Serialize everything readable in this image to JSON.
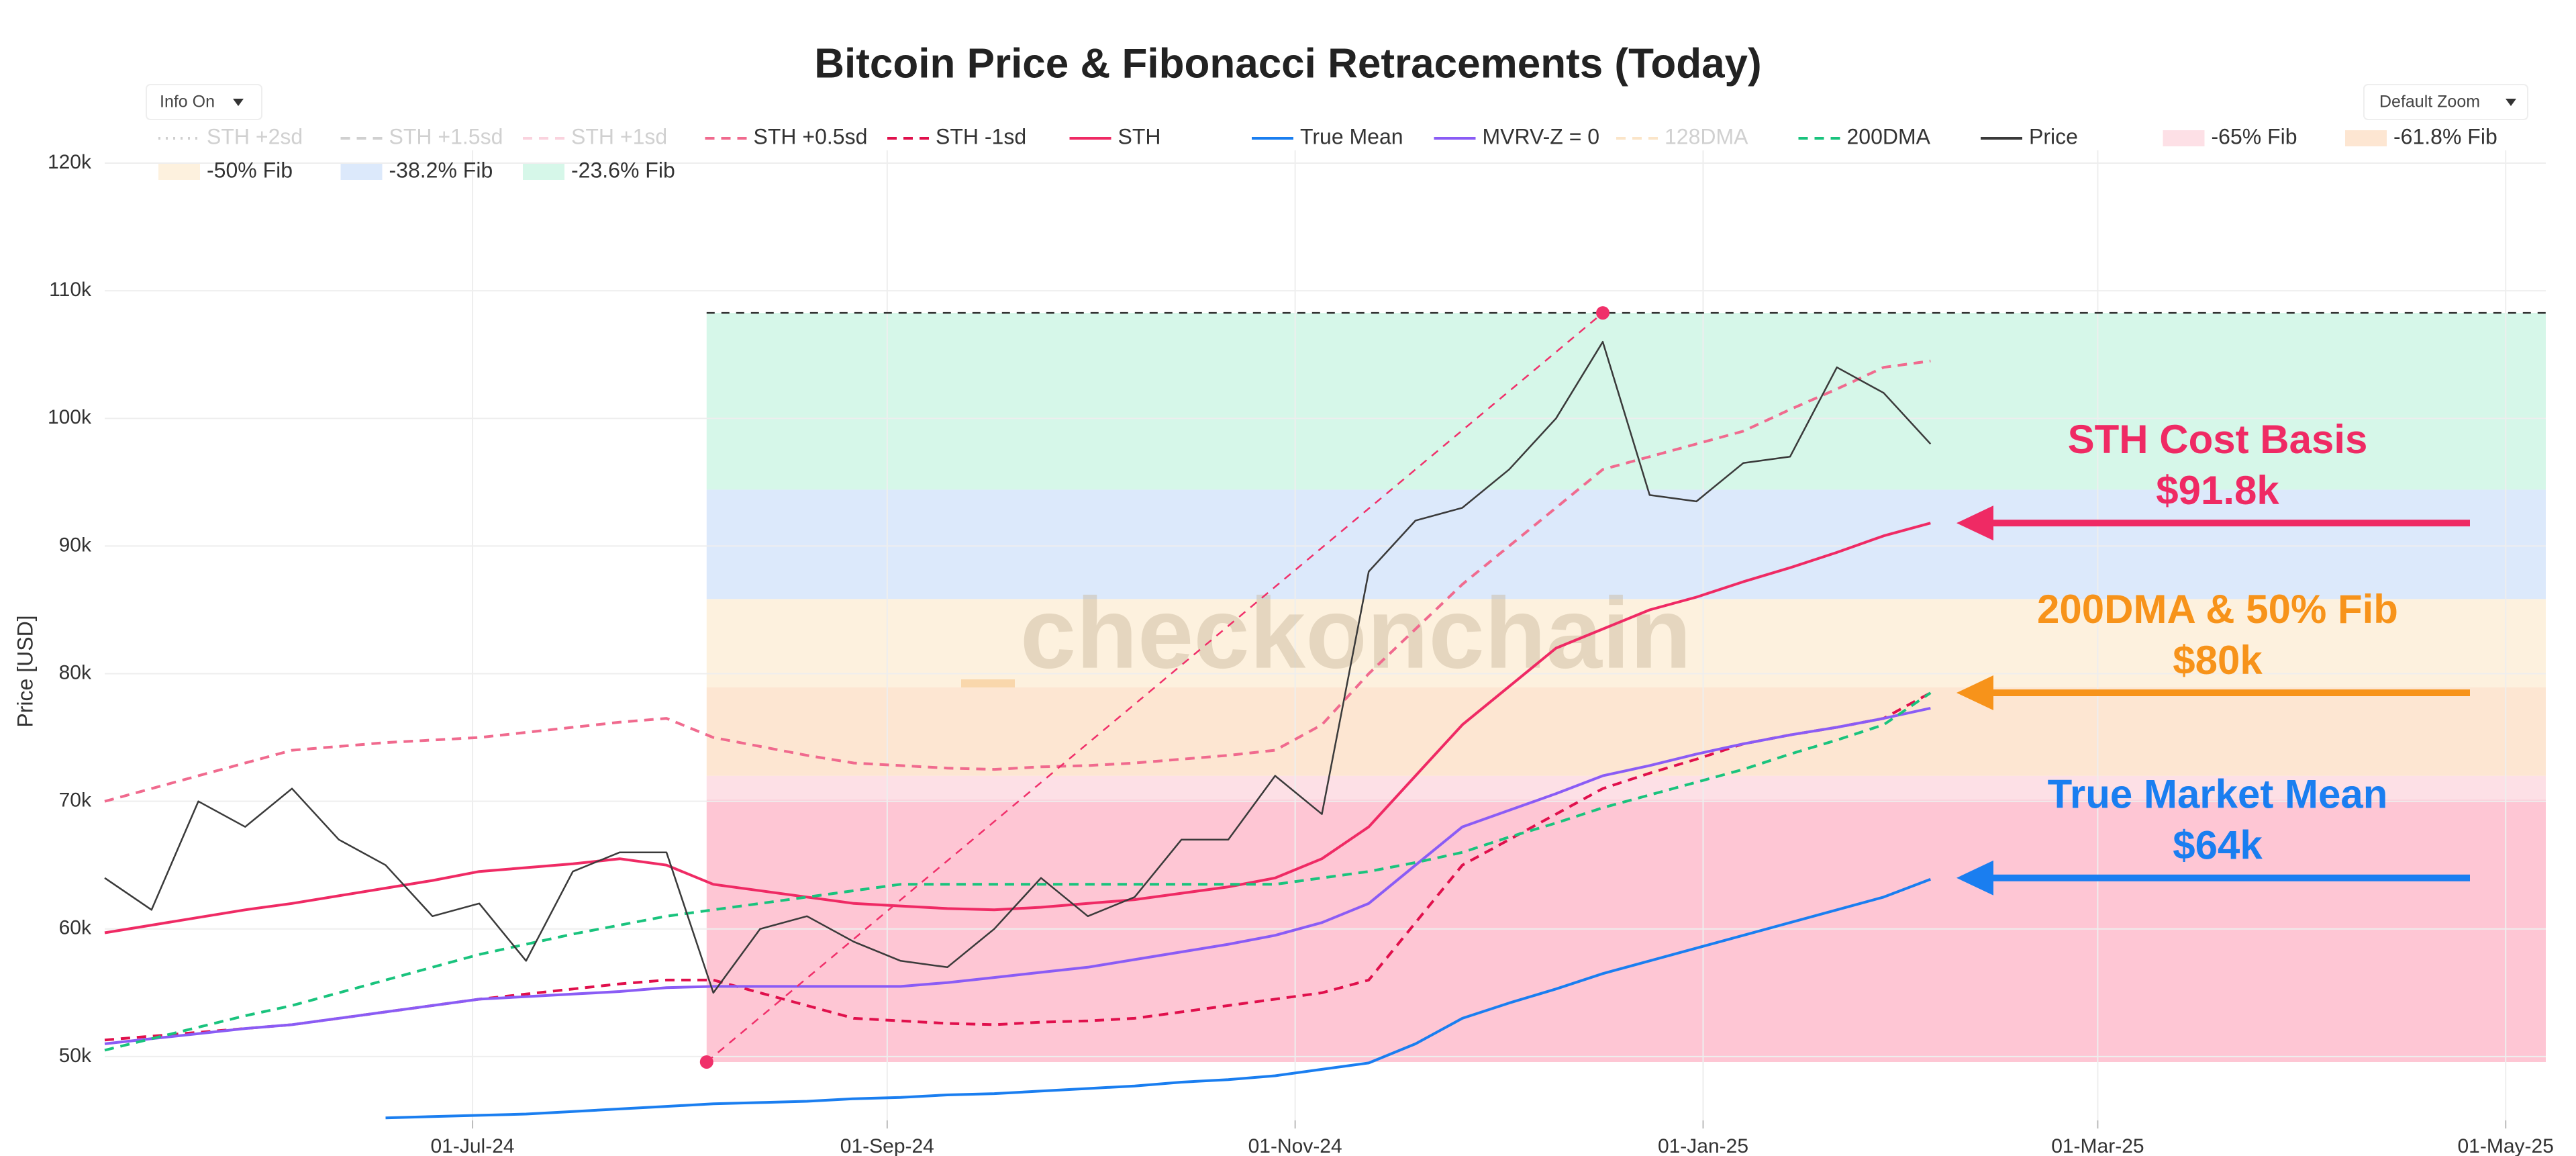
{
  "chart_data": {
    "type": "line",
    "title": "Bitcoin Price & Fibonacci Retracements (Today)",
    "y_label": "Price [USD]",
    "watermark": "checkonchain",
    "controls": {
      "info": "Info On",
      "zoom": "Default Zoom"
    },
    "grid": true,
    "xlim": [
      "2024-05-07",
      "2025-05-07"
    ],
    "xticks": [
      {
        "value": "2024-07-01",
        "label": "01-Jul-24"
      },
      {
        "value": "2024-09-01",
        "label": "01-Sep-24"
      },
      {
        "value": "2024-11-01",
        "label": "01-Nov-24"
      },
      {
        "value": "2025-01-01",
        "label": "01-Jan-25"
      },
      {
        "value": "2025-03-01",
        "label": "01-Mar-25"
      },
      {
        "value": "2025-05-01",
        "label": "01-May-25"
      }
    ],
    "ylim": [
      45000,
      121000
    ],
    "yticks": [
      {
        "value": 50000,
        "label": "50k"
      },
      {
        "value": 60000,
        "label": "60k"
      },
      {
        "value": 70000,
        "label": "70k"
      },
      {
        "value": 80000,
        "label": "80k"
      },
      {
        "value": 90000,
        "label": "90k"
      },
      {
        "value": 100000,
        "label": "100k"
      },
      {
        "value": 110000,
        "label": "110k"
      },
      {
        "value": 120000,
        "label": "120k"
      }
    ],
    "x": [
      "2024-05-07",
      "2024-05-14",
      "2024-05-21",
      "2024-05-28",
      "2024-06-04",
      "2024-06-11",
      "2024-06-18",
      "2024-06-25",
      "2024-07-02",
      "2024-07-09",
      "2024-07-16",
      "2024-07-23",
      "2024-07-30",
      "2024-08-06",
      "2024-08-13",
      "2024-08-20",
      "2024-08-27",
      "2024-09-03",
      "2024-09-10",
      "2024-09-17",
      "2024-09-24",
      "2024-10-01",
      "2024-10-08",
      "2024-10-15",
      "2024-10-22",
      "2024-10-29",
      "2024-11-05",
      "2024-11-12",
      "2024-11-19",
      "2024-11-26",
      "2024-12-03",
      "2024-12-10",
      "2024-12-17",
      "2024-12-24",
      "2024-12-31",
      "2025-01-07",
      "2025-01-14",
      "2025-01-21",
      "2025-01-28",
      "2025-02-04"
    ],
    "series": [
      {
        "name": "STH +2sd",
        "color": "#999999",
        "style": "dotted",
        "visible": false
      },
      {
        "name": "STH +1.5sd",
        "color": "#999999",
        "style": "dashed",
        "visible": false
      },
      {
        "name": "STH +1sd",
        "color": "#f6a0b8",
        "style": "dashed",
        "visible": false
      },
      {
        "name": "STH +0.5sd",
        "color": "#f06a8e",
        "style": "dashed",
        "visible": true,
        "values": [
          70000,
          71000,
          72000,
          73000,
          74000,
          74300,
          74600,
          74800,
          75000,
          75400,
          75800,
          76200,
          76500,
          75000,
          74300,
          73600,
          73000,
          72800,
          72600,
          72500,
          72700,
          72800,
          73000,
          73300,
          73600,
          74000,
          76000,
          80000,
          83500,
          87000,
          90000,
          93000,
          96000,
          97000,
          98000,
          99000,
          100700,
          102300,
          104000,
          104500
        ]
      },
      {
        "name": "STH -1sd",
        "color": "#e0104c",
        "style": "dashed",
        "visible": true,
        "values": [
          51300,
          51600,
          51900,
          52200,
          52500,
          53000,
          53500,
          54000,
          54500,
          54900,
          55300,
          55700,
          56000,
          56000,
          55000,
          54000,
          53000,
          52800,
          52600,
          52500,
          52700,
          52800,
          53000,
          53500,
          54000,
          54500,
          55000,
          56000,
          60500,
          65000,
          67000,
          69000,
          71000,
          72200,
          73300,
          74500,
          75200,
          75800,
          76500,
          78500
        ]
      },
      {
        "name": "STH",
        "color": "#ef2a64",
        "style": "solid",
        "visible": true,
        "values": [
          59700,
          60300,
          60900,
          61500,
          62000,
          62600,
          63200,
          63800,
          64500,
          64800,
          65100,
          65500,
          65000,
          63500,
          63000,
          62500,
          62000,
          61800,
          61600,
          61500,
          61700,
          62000,
          62300,
          62800,
          63300,
          64000,
          65500,
          68000,
          72000,
          76000,
          79000,
          82000,
          83500,
          85000,
          86000,
          87200,
          88300,
          89500,
          90800,
          91800
        ]
      },
      {
        "name": "True Mean",
        "color": "#1a7ef0",
        "style": "solid",
        "visible": true,
        "values": [
          null,
          null,
          null,
          null,
          null,
          null,
          45200,
          45300,
          45400,
          45500,
          45700,
          45900,
          46100,
          46300,
          46400,
          46500,
          46700,
          46800,
          47000,
          47100,
          47300,
          47500,
          47700,
          48000,
          48200,
          48500,
          49000,
          49500,
          51000,
          53000,
          54200,
          55300,
          56500,
          57500,
          58500,
          59500,
          60500,
          61500,
          62500,
          63900
        ]
      },
      {
        "name": "MVRV-Z = 0",
        "color": "#8a5cf5",
        "style": "solid",
        "visible": true,
        "values": [
          51000,
          51400,
          51800,
          52200,
          52500,
          53000,
          53500,
          54000,
          54500,
          54700,
          54900,
          55100,
          55400,
          55500,
          55500,
          55500,
          55500,
          55500,
          55800,
          56200,
          56600,
          57000,
          57600,
          58200,
          58800,
          59500,
          60500,
          62000,
          65000,
          68000,
          69300,
          70600,
          72000,
          72800,
          73700,
          74500,
          75200,
          75800,
          76500,
          77300
        ]
      },
      {
        "name": "128DMA",
        "color": "#f7c68a",
        "style": "dashed",
        "visible": false
      },
      {
        "name": "200DMA",
        "color": "#19c37d",
        "style": "dashed",
        "visible": true,
        "values": [
          50500,
          51400,
          52300,
          53200,
          54000,
          55000,
          56000,
          57000,
          58000,
          58800,
          59600,
          60300,
          61000,
          61500,
          62000,
          62500,
          63000,
          63500,
          63500,
          63500,
          63500,
          63500,
          63500,
          63500,
          63500,
          63500,
          64000,
          64500,
          65200,
          66000,
          67200,
          68300,
          69500,
          70500,
          71500,
          72500,
          73700,
          74800,
          76000,
          78500
        ]
      },
      {
        "name": "Price",
        "color": "#3a3a3a",
        "style": "solid",
        "visible": true,
        "values": [
          64000,
          61500,
          70000,
          68000,
          71000,
          67000,
          65000,
          61000,
          62000,
          57500,
          64500,
          66000,
          66000,
          55000,
          60000,
          61000,
          59000,
          57500,
          57000,
          60000,
          64000,
          61000,
          62500,
          67000,
          67000,
          72000,
          69000,
          88000,
          92000,
          93000,
          96000,
          100000,
          106000,
          94000,
          93500,
          96500,
          97000,
          104000,
          102000,
          98000
        ]
      }
    ],
    "fib_start": "2024-08-05",
    "fib_bands": [
      {
        "name": "-65% Fib",
        "color": "#fde0e6",
        "from": 70119,
        "to": 71997
      },
      {
        "name": "-61.8% Fib",
        "color": "#fde6d2",
        "from": 71997,
        "to": 78923
      },
      {
        "name": "-50% Fib",
        "color": "#fdf1de",
        "from": 78923,
        "to": 85848
      },
      {
        "name": "-38.2% Fib",
        "color": "#dce9fb",
        "from": 85848,
        "to": 94418
      },
      {
        "name": "-23.6% Fib",
        "color": "#d6f7e9",
        "from": 94418,
        "to": 108268
      },
      {
        "color": "#fec6d4",
        "from": 49577,
        "to": 70119
      }
    ],
    "extremes": {
      "x": [
        "2024-08-05",
        "2024-12-17"
      ],
      "values": [
        49577,
        108268
      ],
      "color": "#f0306a"
    },
    "annotations": [
      {
        "lines": [
          "STH Cost Basis",
          "$91.8k"
        ],
        "y": 91800,
        "color": "#ef2a64"
      },
      {
        "lines": [
          "200DMA & 50% Fib",
          "$80k"
        ],
        "y": 78500,
        "color": "#f7931a"
      },
      {
        "lines": [
          "True Market Mean",
          "$64k"
        ],
        "y": 64000,
        "color": "#1a7ef0"
      }
    ]
  }
}
